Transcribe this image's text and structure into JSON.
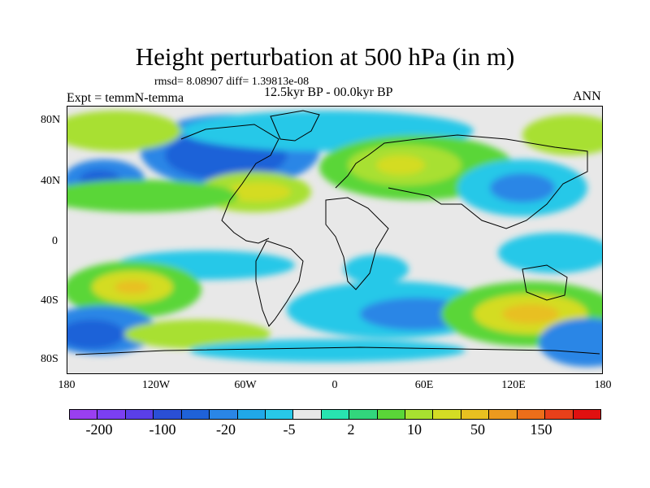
{
  "title": "Height perturbation at 500 hPa (in m)",
  "stats": "rmsd= 8.08907 diff= 1.39813e-08",
  "subtitle": "12.5kyr BP - 00.0kyr BP",
  "experiment": "Expt = temmN-temma",
  "season": "ANN",
  "y_ticks": [
    "80N",
    "40N",
    "0",
    "40S",
    "80S"
  ],
  "x_ticks": [
    "180",
    "120W",
    "60W",
    "0",
    "60E",
    "120E",
    "180"
  ],
  "colorbar": {
    "colors": [
      "#9a3ff0",
      "#7b3ff2",
      "#5a3fe8",
      "#2a4fd6",
      "#1f62d8",
      "#2a86e6",
      "#20a8e8",
      "#28c8e8",
      "#e8e8e8",
      "#28e4b0",
      "#32d67c",
      "#5ad638",
      "#a8e030",
      "#d4dc24",
      "#e8c020",
      "#ec9a1e",
      "#ec6e1a",
      "#e8401a",
      "#e01010"
    ],
    "labels": [
      "-200",
      "-100",
      "-20",
      "-5",
      "2",
      "10",
      "50",
      "150"
    ]
  },
  "map": {
    "background": "#e8e8e8",
    "regions": [
      {
        "name": "arctic-negative",
        "color": "#2a86e6"
      },
      {
        "name": "north-america-negative",
        "color": "#1f62d8"
      },
      {
        "name": "atlantic-positive",
        "color": "#a8e030"
      },
      {
        "name": "eurasia-positive",
        "color": "#a8e030"
      },
      {
        "name": "pacific-positive",
        "color": "#5ad638"
      },
      {
        "name": "south-pacific-positive",
        "color": "#d4dc24"
      },
      {
        "name": "south-indian-positive",
        "color": "#e8c020"
      },
      {
        "name": "southern-ocean-negative",
        "color": "#1f62d8"
      }
    ]
  }
}
